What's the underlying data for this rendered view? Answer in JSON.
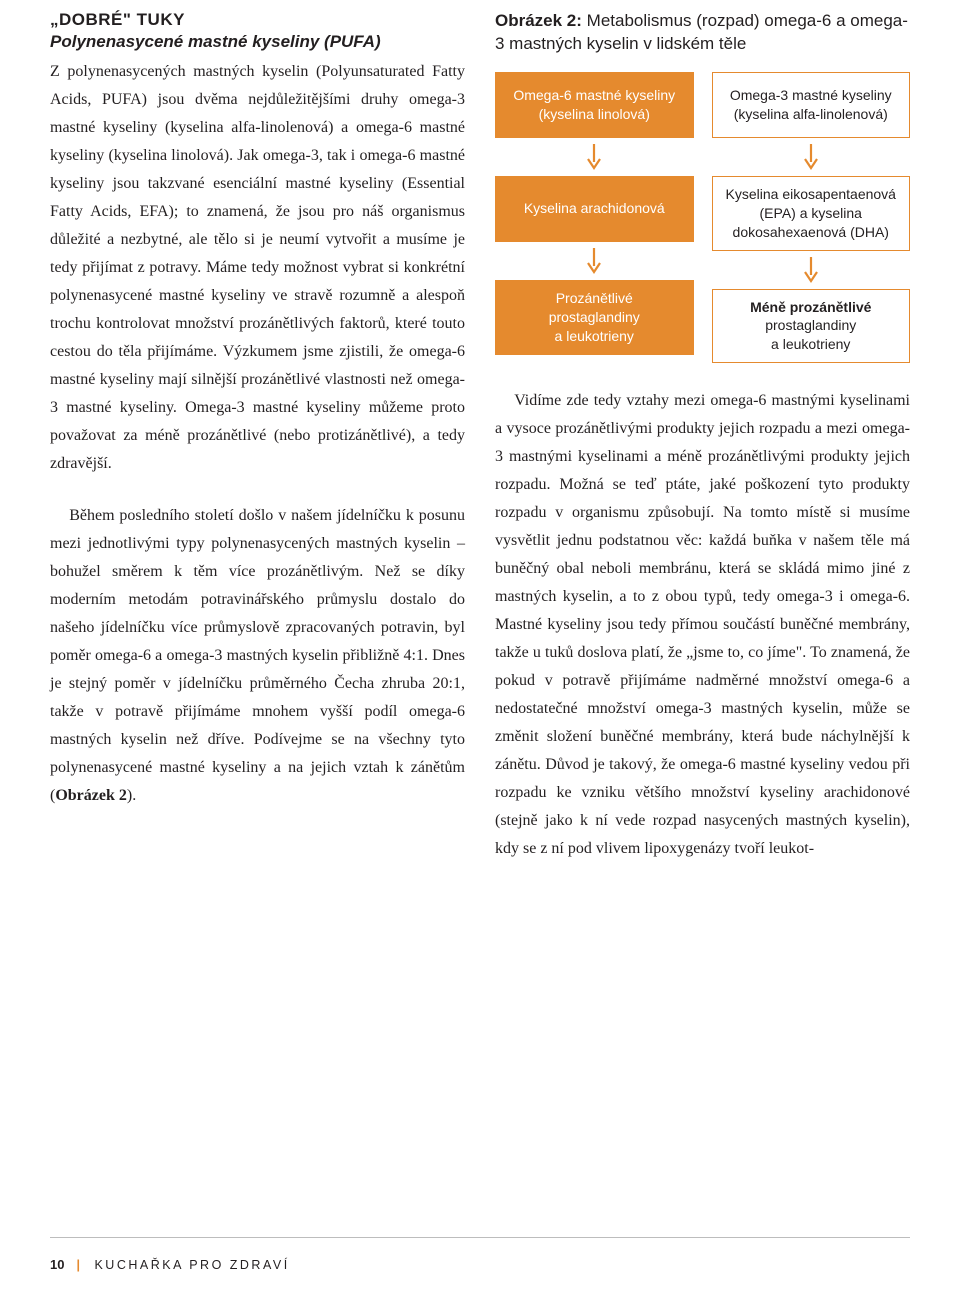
{
  "heading": "„DOBRÉ\" TUKY",
  "subheading": "Polynenasycené mastné kyseliny (PUFA)",
  "leftPara1": "Z polynenasycených mastných kyselin (Polyunsaturated Fatty Acids, PUFA) jsou dvěma nejdůležitějšími druhy omega-3 mastné kyseliny (kyselina alfa-linolenová) a omega-6 mastné kyseliny (kyselina linolová). Jak omega-3, tak i omega-6 mastné kyseliny jsou takzvané esenciální mastné kyseliny (Essential Fatty Acids, EFA); to znamená, že jsou pro náš organismus důležité a nezbytné, ale tělo si je neumí vytvořit a musíme je tedy přijímat z potravy. Máme tedy možnost vybrat si konkrétní polynenasycené mastné kyseliny ve stravě rozumně a alespoň trochu kontrolovat množství prozánětlivých faktorů, které touto cestou do těla přijímáme. Výzkumem jsme zjistili, že omega-6 mastné kyseliny mají silnější prozánětlivé vlastnosti než omega-3 mastné kyseliny. Omega-3 mastné kyseliny můžeme proto považovat za méně prozánětlivé (nebo protizánětlivé), a tedy zdravější.",
  "leftPara2a": "Během posledního století došlo v našem jídelníčku k posunu mezi jednotlivými typy polynenasycených mastných kyselin – bohužel směrem k těm více prozánětlivým. Než se díky moderním metodám potravinářského průmyslu dostalo do našeho jídelníčku více průmyslově zpracovaných potravin, byl poměr omega-6 a omega-3 mastných kyselin přibližně 4:1. Dnes je stejný poměr v jídelníčku průměrného Čecha zhruba 20:1, takže v potravě přijímáme mnohem vyšší podíl omega-6 mastných kyselin než dříve. Podívejme se na všechny tyto polynenasycené mastné kyseliny a na jejich vztah k zánětům (",
  "leftPara2b": "Obrázek 2",
  "leftPara2c": ").",
  "figLead": "Obrázek 2:",
  "figRest": " Metabolismus (rozpad) omega-6 a omega-3 mastných kyselin v lidském těle",
  "diagram": {
    "orange": "#e58a2e",
    "arrowStroke": "#e58a2e",
    "left": {
      "box1": "Omega-6 mastné kyseliny\n(kyselina linolová)",
      "box2": "Kyselina arachidonová",
      "box3": "Prozánětlivé\nprostaglandiny\na leukotrieny"
    },
    "right": {
      "box1": "Omega-3 mastné kyseliny\n(kyselina alfa-linolenová)",
      "box2": "Kyselina eikosapentaenová (EPA) a kyselina dokosahexaenová (DHA)",
      "box3bold": "Méně prozánětlivé",
      "box3reg": "prostaglandiny\na leukotrieny"
    }
  },
  "rightPara": "Vidíme zde tedy vztahy mezi omega-6 mastnými kyselinami a vysoce prozánětlivými produkty jejich rozpadu a mezi omega-3 mastnými kyselinami a méně prozánětlivými produkty jejich rozpadu. Možná se teď ptáte, jaké poškození tyto produkty rozpadu v organismu způsobují. Na tomto místě si musíme vysvětlit jednu podstatnou věc: každá buňka v našem těle má buněčný obal neboli membránu, která se skládá mimo jiné z mastných kyselin, a to z obou typů, tedy omega-3 i omega-6. Mastné kyseliny jsou tedy přímou součástí buněčné membrány, takže u tuků doslova platí, že „jsme to, co jíme\". To znamená, že pokud v potravě přijímáme nadměrné množství omega-6 a nedostatečné množství omega-3 mastných kyselin, může se změnit složení buněčné membrány, která bude náchylnější k zánětu. Důvod je takový, že omega-6 mastné kyseliny vedou při rozpadu ke vzniku většího množství kyseliny arachidonové (stejně jako k ní vede rozpad nasycených mastných kyselin), kdy se z ní pod vlivem lipoxygenázy tvoří leukot-",
  "footer": {
    "page": "10",
    "title": "KUCHAŘKA PRO ZDRAVÍ"
  }
}
